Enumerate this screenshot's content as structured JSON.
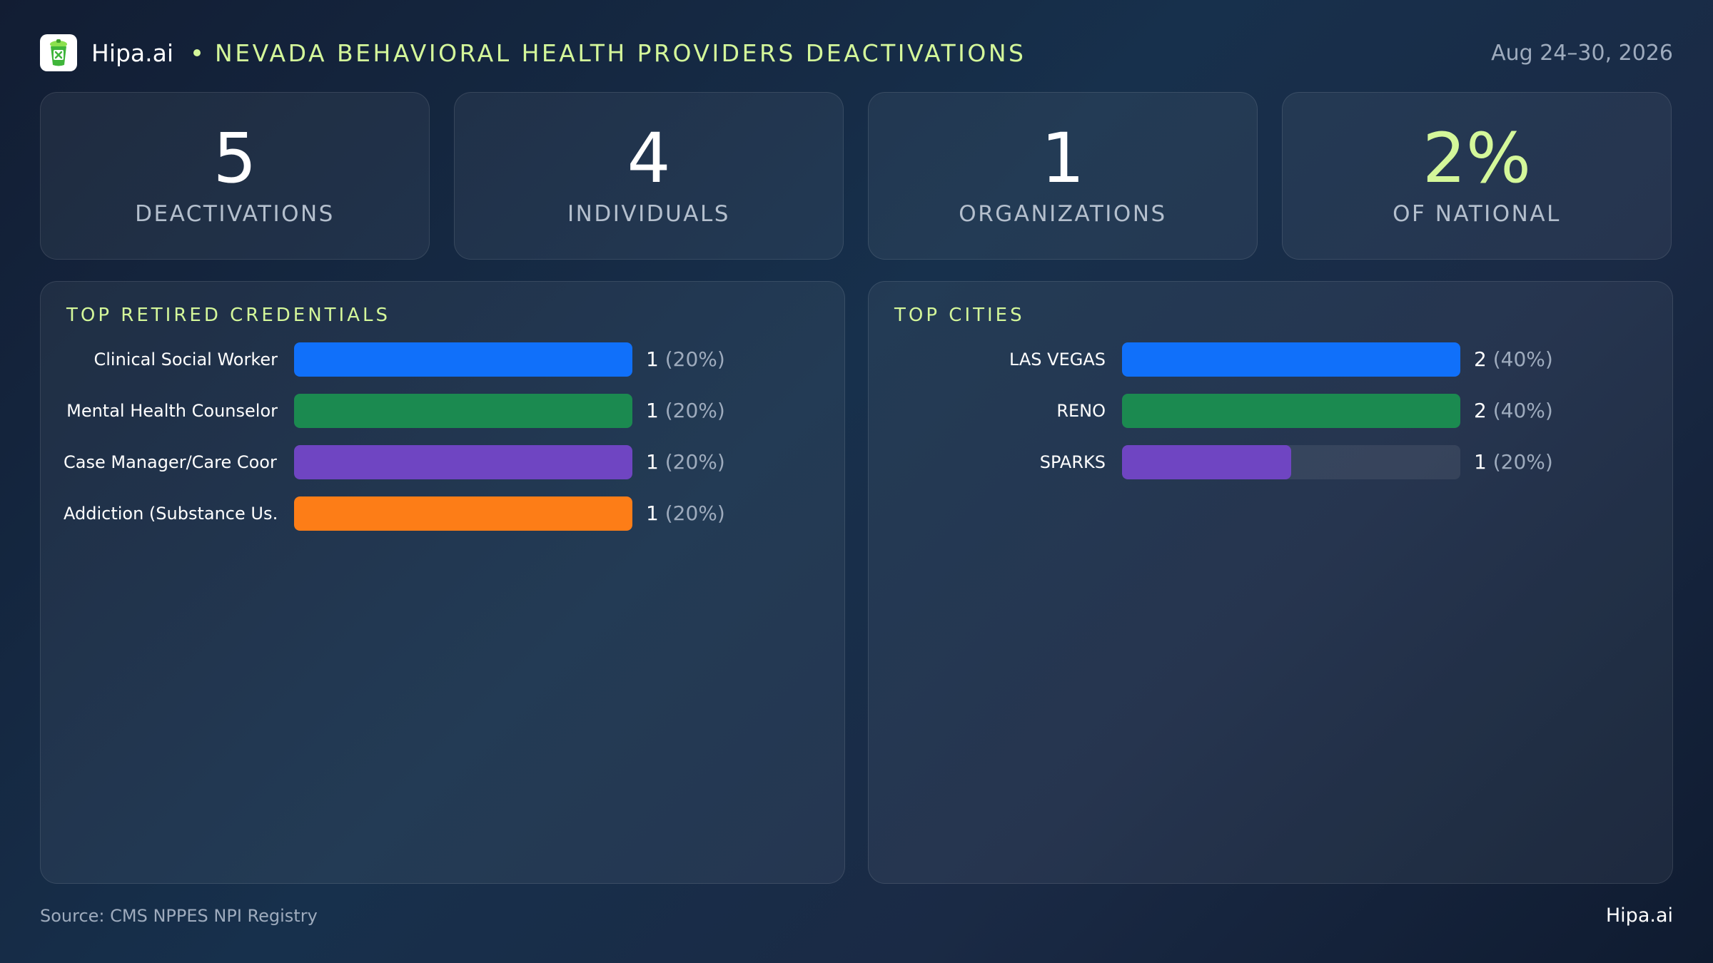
{
  "header": {
    "brand": "Hipa.ai",
    "title": "NEVADA BEHAVIORAL HEALTH PROVIDERS DEACTIVATIONS",
    "date_range": "Aug 24–30, 2026",
    "logo_icon": "trash-can-icon",
    "accent_color": "#d4f79a"
  },
  "kpis": [
    {
      "value": "5",
      "label": "DEACTIVATIONS",
      "accent": false
    },
    {
      "value": "4",
      "label": "INDIVIDUALS",
      "accent": false
    },
    {
      "value": "1",
      "label": "ORGANIZATIONS",
      "accent": false
    },
    {
      "value": "2%",
      "label": "OF NATIONAL",
      "accent": true
    }
  ],
  "chart_data": [
    {
      "type": "bar",
      "orientation": "horizontal",
      "title": "TOP RETIRED CREDENTIALS",
      "categories": [
        "Clinical Social Worker",
        "Mental Health Counselor",
        "Case Manager/Care Coor…",
        "Addiction (Substance Us…"
      ],
      "values": [
        1,
        1,
        1,
        1
      ],
      "value_labels": [
        "1",
        "1",
        "1",
        "1"
      ],
      "percent_labels": [
        "(20%)",
        "(20%)",
        "(20%)",
        "(20%)"
      ],
      "colors": [
        "#1070fa",
        "#1b8a50",
        "#6f45c2",
        "#fd7d17"
      ],
      "xlim": [
        0,
        1
      ]
    },
    {
      "type": "bar",
      "orientation": "horizontal",
      "title": "TOP CITIES",
      "categories": [
        "LAS VEGAS",
        "RENO",
        "SPARKS"
      ],
      "values": [
        2,
        2,
        1
      ],
      "value_labels": [
        "2",
        "2",
        "1"
      ],
      "percent_labels": [
        "(40%)",
        "(40%)",
        "(20%)"
      ],
      "colors": [
        "#1070fa",
        "#1b8a50",
        "#6f45c2"
      ],
      "xlim": [
        0,
        2
      ]
    }
  ],
  "footer": {
    "source": "Source: CMS NPPES NPI Registry",
    "brand": "Hipa.ai"
  }
}
